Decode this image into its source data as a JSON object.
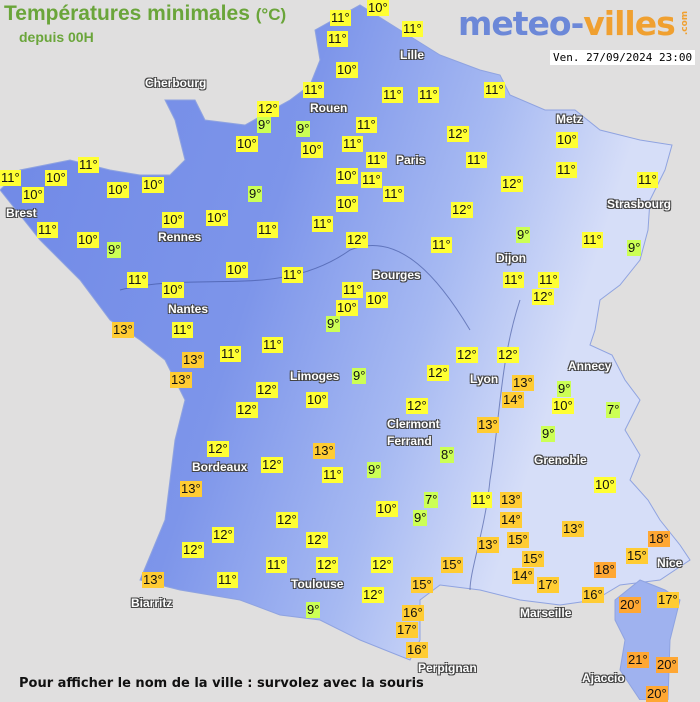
{
  "header": {
    "title": "Températures minimales",
    "title_unit": "(°C)",
    "subtitle": "depuis 00H",
    "logo_main": "meteo-",
    "logo_accent": "villes",
    "logo_suffix": ".com",
    "datetime": "Ven. 27/09/2024 23:00"
  },
  "colors": {
    "cold": "#ccff55",
    "mild": "#ffff33",
    "warm": "#ffcc33",
    "hot": "#ffa733",
    "land": "#7b93e8",
    "sea": "#e0dfdf"
  },
  "cities": [
    "Cherbourg",
    "Rouen",
    "Lille",
    "Paris",
    "Metz",
    "Strasbourg",
    "Brest",
    "Rennes",
    "Nantes",
    "Dijon",
    "Bourges",
    "Limoges",
    "Lyon",
    "Annecy",
    "Clermont",
    "Ferrand",
    "Grenoble",
    "Bordeaux",
    "Toulouse",
    "Biarritz",
    "Nice",
    "Marseille",
    "Perpignan",
    "Ajaccio"
  ],
  "readings": [
    {
      "v": "11°",
      "l": "mild"
    },
    {
      "v": "10°",
      "l": "mild"
    },
    {
      "v": "11°",
      "l": "mild"
    },
    {
      "v": "11°",
      "l": "mild"
    },
    {
      "v": "10°",
      "l": "mild"
    },
    {
      "v": "11°",
      "l": "mild"
    },
    {
      "v": "11°",
      "l": "mild"
    },
    {
      "v": "11°",
      "l": "mild"
    },
    {
      "v": "11°",
      "l": "mild"
    },
    {
      "v": "12°",
      "l": "mild"
    },
    {
      "v": "9°",
      "l": "cold"
    },
    {
      "v": "9°",
      "l": "cold"
    },
    {
      "v": "10°",
      "l": "mild"
    },
    {
      "v": "11°",
      "l": "mild"
    },
    {
      "v": "11°",
      "l": "mild"
    },
    {
      "v": "11°",
      "l": "mild"
    },
    {
      "v": "10°",
      "l": "mild"
    },
    {
      "v": "11°",
      "l": "mild"
    },
    {
      "v": "11°",
      "l": "mild"
    },
    {
      "v": "10°",
      "l": "mild"
    },
    {
      "v": "11°",
      "l": "mild"
    },
    {
      "v": "12°",
      "l": "mild"
    },
    {
      "v": "10°",
      "l": "mild"
    },
    {
      "v": "9°",
      "l": "cold"
    },
    {
      "v": "11°",
      "l": "mild"
    },
    {
      "v": "10°",
      "l": "mild"
    },
    {
      "v": "12°",
      "l": "mild"
    },
    {
      "v": "11°",
      "l": "mild"
    },
    {
      "v": "12°",
      "l": "mild"
    },
    {
      "v": "12°",
      "l": "mild"
    },
    {
      "v": "11°",
      "l": "mild"
    },
    {
      "v": "10°",
      "l": "mild"
    },
    {
      "v": "11°",
      "l": "mild"
    },
    {
      "v": "11°",
      "l": "mild"
    },
    {
      "v": "9°",
      "l": "cold"
    },
    {
      "v": "11°",
      "l": "mild"
    },
    {
      "v": "9°",
      "l": "cold"
    },
    {
      "v": "11°",
      "l": "mild"
    },
    {
      "v": "11°",
      "l": "mild"
    },
    {
      "v": "12°",
      "l": "mild"
    },
    {
      "v": "11°",
      "l": "mild"
    },
    {
      "v": "10°",
      "l": "mild"
    },
    {
      "v": "11°",
      "l": "mild"
    },
    {
      "v": "10°",
      "l": "mild"
    },
    {
      "v": "9°",
      "l": "cold"
    },
    {
      "v": "11°",
      "l": "mild"
    },
    {
      "v": "11°",
      "l": "mild"
    },
    {
      "v": "10°",
      "l": "mild"
    },
    {
      "v": "10°",
      "l": "mild"
    },
    {
      "v": "10°",
      "l": "mild"
    },
    {
      "v": "10°",
      "l": "mild"
    },
    {
      "v": "11°",
      "l": "mild"
    },
    {
      "v": "10°",
      "l": "mild"
    },
    {
      "v": "9°",
      "l": "cold"
    },
    {
      "v": "10°",
      "l": "mild"
    },
    {
      "v": "11°",
      "l": "mild"
    },
    {
      "v": "10°",
      "l": "mild"
    },
    {
      "v": "13°",
      "l": "warm"
    },
    {
      "v": "11°",
      "l": "mild"
    },
    {
      "v": "10°",
      "l": "mild"
    },
    {
      "v": "13°",
      "l": "warm"
    },
    {
      "v": "11°",
      "l": "mild"
    },
    {
      "v": "11°",
      "l": "mild"
    },
    {
      "v": "13°",
      "l": "warm"
    },
    {
      "v": "12°",
      "l": "mild"
    },
    {
      "v": "12°",
      "l": "mild"
    },
    {
      "v": "9°",
      "l": "cold"
    },
    {
      "v": "10°",
      "l": "mild"
    },
    {
      "v": "12°",
      "l": "mild"
    },
    {
      "v": "12°",
      "l": "mild"
    },
    {
      "v": "13°",
      "l": "warm"
    },
    {
      "v": "13°",
      "l": "warm"
    },
    {
      "v": "11°",
      "l": "mild"
    },
    {
      "v": "9°",
      "l": "cold"
    },
    {
      "v": "12°",
      "l": "mild"
    },
    {
      "v": "12°",
      "l": "mild"
    },
    {
      "v": "12°",
      "l": "mild"
    },
    {
      "v": "12°",
      "l": "mild"
    },
    {
      "v": "11°",
      "l": "mild"
    },
    {
      "v": "12°",
      "l": "mild"
    },
    {
      "v": "11°",
      "l": "mild"
    },
    {
      "v": "13°",
      "l": "warm"
    },
    {
      "v": "9°",
      "l": "cold"
    },
    {
      "v": "12°",
      "l": "mild"
    },
    {
      "v": "12°",
      "l": "mild"
    },
    {
      "v": "12°",
      "l": "mild"
    },
    {
      "v": "13°",
      "l": "warm"
    },
    {
      "v": "14°",
      "l": "warm"
    },
    {
      "v": "9°",
      "l": "cold"
    },
    {
      "v": "10°",
      "l": "mild"
    },
    {
      "v": "7°",
      "l": "cold"
    },
    {
      "v": "12°",
      "l": "mild"
    },
    {
      "v": "13°",
      "l": "warm"
    },
    {
      "v": "9°",
      "l": "cold"
    },
    {
      "v": "8°",
      "l": "cold"
    },
    {
      "v": "10°",
      "l": "mild"
    },
    {
      "v": "7°",
      "l": "cold"
    },
    {
      "v": "9°",
      "l": "cold"
    },
    {
      "v": "10°",
      "l": "mild"
    },
    {
      "v": "11°",
      "l": "mild"
    },
    {
      "v": "13°",
      "l": "warm"
    },
    {
      "v": "13°",
      "l": "warm"
    },
    {
      "v": "14°",
      "l": "warm"
    },
    {
      "v": "13°",
      "l": "warm"
    },
    {
      "v": "15°",
      "l": "warm"
    },
    {
      "v": "12°",
      "l": "mild"
    },
    {
      "v": "15°",
      "l": "warm"
    },
    {
      "v": "15°",
      "l": "warm"
    },
    {
      "v": "14°",
      "l": "warm"
    },
    {
      "v": "17°",
      "l": "warm"
    },
    {
      "v": "18°",
      "l": "hot"
    },
    {
      "v": "16°",
      "l": "warm"
    },
    {
      "v": "15°",
      "l": "warm"
    },
    {
      "v": "18°",
      "l": "hot"
    },
    {
      "v": "12°",
      "l": "mild"
    },
    {
      "v": "15°",
      "l": "warm"
    },
    {
      "v": "16°",
      "l": "warm"
    },
    {
      "v": "17°",
      "l": "warm"
    },
    {
      "v": "16°",
      "l": "warm"
    },
    {
      "v": "20°",
      "l": "hot"
    },
    {
      "v": "17°",
      "l": "warm"
    },
    {
      "v": "21°",
      "l": "hot"
    },
    {
      "v": "20°",
      "l": "hot"
    },
    {
      "v": "20°",
      "l": "hot"
    }
  ],
  "footer": "Pour afficher le nom de la ville : survolez avec la souris"
}
